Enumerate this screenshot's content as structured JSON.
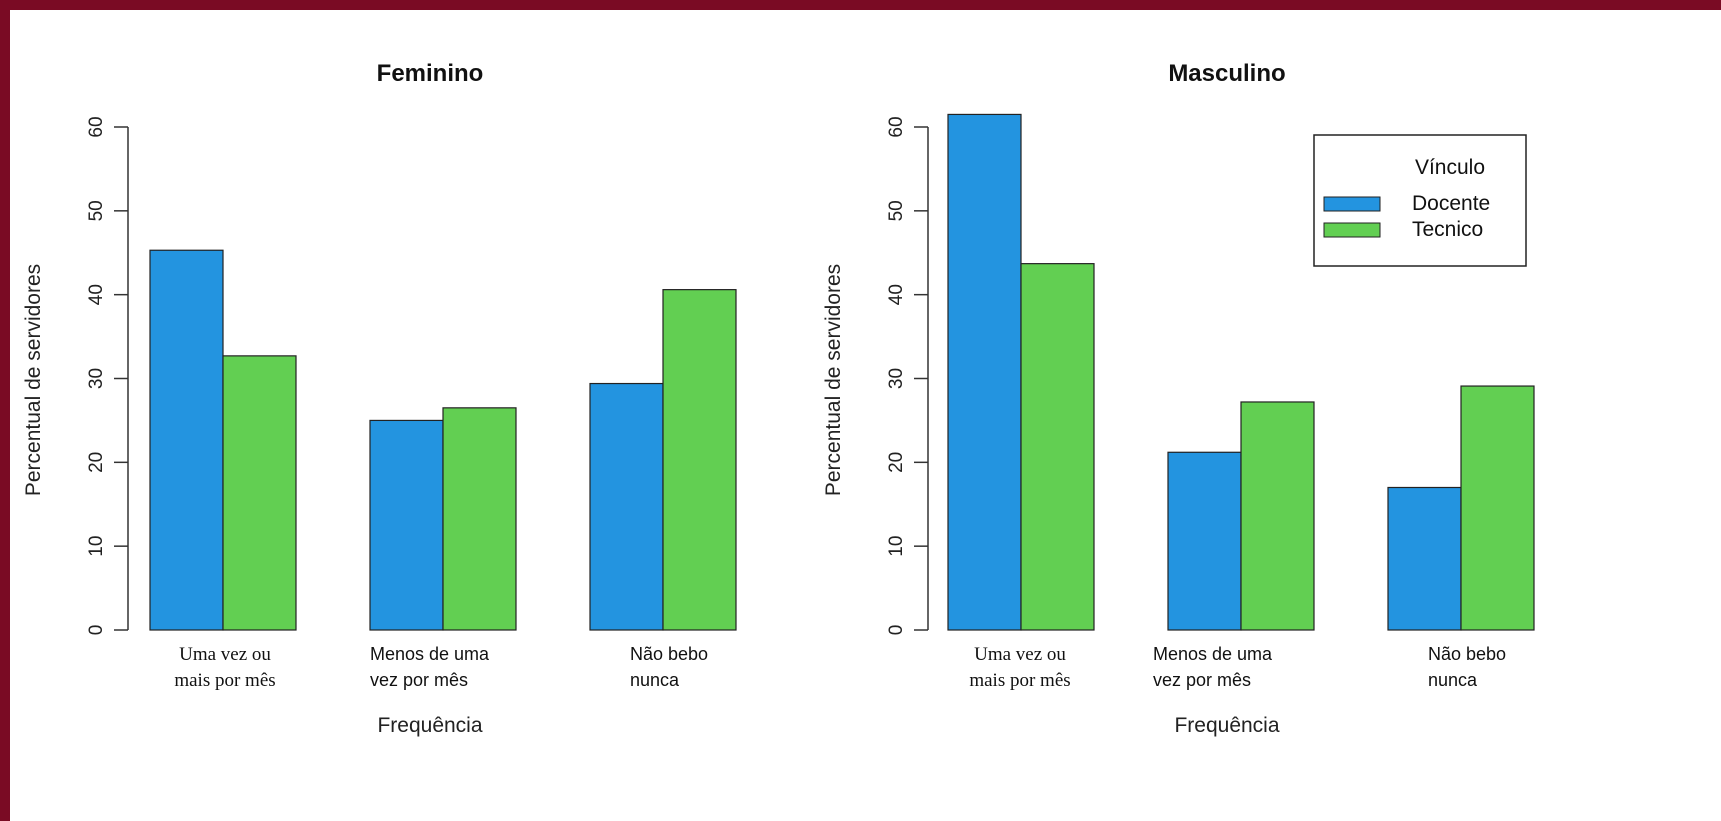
{
  "chart_data": [
    {
      "type": "bar",
      "title": "Feminino",
      "xlabel": "Frequência",
      "ylabel": "Percentual de servidores",
      "ylim": [
        0,
        60
      ],
      "yticks": [
        "0",
        "10",
        "20",
        "30",
        "40",
        "50",
        "60"
      ],
      "categories": [
        [
          "Uma vez ou",
          "mais por mês"
        ],
        [
          "Menos de uma",
          "vez por mês"
        ],
        [
          "Não bebo",
          "nunca"
        ]
      ],
      "series": [
        {
          "name": "Docente",
          "color": "#2394e0",
          "values": [
            45.3,
            25.0,
            29.4
          ]
        },
        {
          "name": "Tecnico",
          "color": "#62cf52",
          "values": [
            32.7,
            26.5,
            40.6
          ]
        }
      ],
      "grid": false,
      "legend": null
    },
    {
      "type": "bar",
      "title": "Masculino",
      "xlabel": "Frequência",
      "ylabel": "Percentual de servidores",
      "ylim": [
        0,
        60
      ],
      "yticks": [
        "0",
        "10",
        "20",
        "30",
        "40",
        "50",
        "60"
      ],
      "categories": [
        [
          "Uma vez ou",
          "mais por mês"
        ],
        [
          "Menos de uma",
          "vez por mês"
        ],
        [
          "Não bebo",
          "nunca"
        ]
      ],
      "series": [
        {
          "name": "Docente",
          "color": "#2394e0",
          "values": [
            61.5,
            21.2,
            17.0
          ]
        },
        {
          "name": "Tecnico",
          "color": "#62cf52",
          "values": [
            43.7,
            27.2,
            29.1
          ]
        }
      ],
      "grid": false,
      "legend": {
        "title": "Vínculo",
        "placement": "top-right"
      }
    }
  ]
}
